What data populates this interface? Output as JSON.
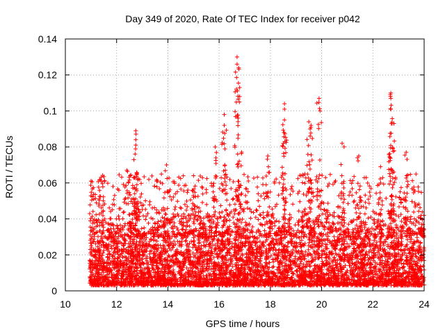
{
  "chart_data": {
    "type": "scatter",
    "title": "Day 349 of 2020, Rate Of TEC Index for receiver p042",
    "xlabel": "GPS time / hours",
    "ylabel": "ROTI / TECUs",
    "xlim": [
      10,
      24
    ],
    "ylim": [
      0,
      0.14
    ],
    "xticks": [
      10,
      12,
      14,
      16,
      18,
      20,
      22,
      24
    ],
    "xtick_labels": [
      "10",
      "12",
      "14",
      "16",
      "18",
      "20",
      "22",
      "24"
    ],
    "yticks": [
      0,
      0.02,
      0.04,
      0.06,
      0.08,
      0.1,
      0.12,
      0.14
    ],
    "ytick_labels": [
      "0",
      "0.02",
      "0.04",
      "0.06",
      "0.08",
      "0.1",
      "0.12",
      "0.14"
    ],
    "grid": true,
    "marker": "+",
    "color": "#ff0000",
    "x_data_range": [
      10.95,
      24.0
    ],
    "typical_band": [
      0.003,
      0.035
    ],
    "annotated_peaks": [
      {
        "x": 11.0,
        "y": 0.061
      },
      {
        "x": 11.4,
        "y": 0.061
      },
      {
        "x": 12.4,
        "y": 0.067
      },
      {
        "x": 12.75,
        "y": 0.089
      },
      {
        "x": 12.75,
        "y": 0.084
      },
      {
        "x": 12.75,
        "y": 0.081
      },
      {
        "x": 13.95,
        "y": 0.07
      },
      {
        "x": 15.0,
        "y": 0.064
      },
      {
        "x": 15.85,
        "y": 0.08
      },
      {
        "x": 16.2,
        "y": 0.098
      },
      {
        "x": 16.2,
        "y": 0.092
      },
      {
        "x": 16.7,
        "y": 0.13
      },
      {
        "x": 16.7,
        "y": 0.126
      },
      {
        "x": 16.8,
        "y": 0.113
      },
      {
        "x": 16.8,
        "y": 0.108
      },
      {
        "x": 17.9,
        "y": 0.075
      },
      {
        "x": 18.55,
        "y": 0.104
      },
      {
        "x": 18.55,
        "y": 0.101
      },
      {
        "x": 18.55,
        "y": 0.095
      },
      {
        "x": 19.5,
        "y": 0.094
      },
      {
        "x": 19.55,
        "y": 0.09
      },
      {
        "x": 19.55,
        "y": 0.086
      },
      {
        "x": 19.9,
        "y": 0.107
      },
      {
        "x": 20.8,
        "y": 0.082
      },
      {
        "x": 21.45,
        "y": 0.075
      },
      {
        "x": 22.3,
        "y": 0.069
      },
      {
        "x": 22.7,
        "y": 0.11
      },
      {
        "x": 22.7,
        "y": 0.107
      },
      {
        "x": 22.7,
        "y": 0.101
      },
      {
        "x": 22.75,
        "y": 0.093
      },
      {
        "x": 23.3,
        "y": 0.077
      },
      {
        "x": 23.9,
        "y": 0.035
      }
    ]
  }
}
